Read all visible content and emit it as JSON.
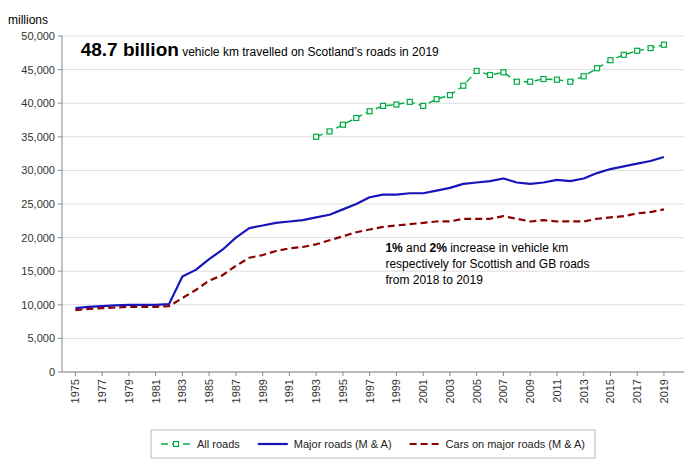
{
  "chart_data": {
    "type": "line",
    "y_label": "millions",
    "annotation": [
      "48.7 billion",
      " vehicle km travelled on Scotland’s roads in 2019"
    ],
    "subtitle": [
      [
        "1%",
        " and ",
        "2%",
        " increase in vehicle km"
      ],
      [
        "respectively for Scottish and GB roads"
      ],
      [
        "from 2018 to 2019"
      ]
    ],
    "x": [
      1975,
      1976,
      1977,
      1978,
      1979,
      1980,
      1981,
      1982,
      1983,
      1984,
      1985,
      1986,
      1987,
      1988,
      1989,
      1990,
      1991,
      1992,
      1993,
      1994,
      1995,
      1996,
      1997,
      1998,
      1999,
      2000,
      2001,
      2002,
      2003,
      2004,
      2005,
      2006,
      2007,
      2008,
      2009,
      2010,
      2011,
      2012,
      2013,
      2014,
      2015,
      2016,
      2017,
      2018,
      2019
    ],
    "series": [
      {
        "name": "All roads",
        "color": "#00AA44",
        "line_style": "dashed",
        "marker": "square",
        "values": [
          null,
          null,
          null,
          null,
          null,
          null,
          null,
          null,
          null,
          null,
          null,
          null,
          null,
          null,
          null,
          null,
          null,
          null,
          35000,
          35800,
          36800,
          37800,
          38800,
          39600,
          39800,
          40200,
          39600,
          40600,
          41200,
          42600,
          44800,
          44200,
          44600,
          43200,
          43200,
          43600,
          43500,
          43200,
          44000,
          45200,
          46400,
          47200,
          47800,
          48200,
          48700
        ]
      },
      {
        "name": "Major roads (M & A)",
        "color": "#1515BB",
        "line_style": "solid",
        "values": [
          9500,
          9700,
          9800,
          9900,
          10000,
          10000,
          10000,
          10100,
          14200,
          15200,
          16800,
          18200,
          20000,
          21400,
          21800,
          22200,
          22400,
          22600,
          23000,
          23400,
          24200,
          25000,
          26000,
          26400,
          26400,
          26600,
          26600,
          27000,
          27400,
          28000,
          28200,
          28400,
          28800,
          28200,
          28000,
          28200,
          28600,
          28400,
          28800,
          29600,
          30200,
          30600,
          31000,
          31400,
          32000
        ]
      },
      {
        "name": "Cars on major roads (M & A)",
        "color": "#8B0000",
        "line_style": "dashed",
        "values": [
          9200,
          9400,
          9500,
          9600,
          9700,
          9700,
          9700,
          9800,
          11000,
          12200,
          13600,
          14400,
          15800,
          17000,
          17400,
          18000,
          18400,
          18600,
          19000,
          19600,
          20200,
          20800,
          21200,
          21600,
          21800,
          22000,
          22200,
          22400,
          22400,
          22800,
          22800,
          22800,
          23200,
          22800,
          22400,
          22600,
          22400,
          22400,
          22400,
          22800,
          23000,
          23200,
          23600,
          23800,
          24200
        ]
      }
    ],
    "xlim": [
      1974,
      2020.5
    ],
    "xticks": [
      1975,
      1977,
      1979,
      1981,
      1983,
      1985,
      1987,
      1989,
      1991,
      1993,
      1995,
      1997,
      1999,
      2001,
      2003,
      2005,
      2007,
      2009,
      2011,
      2013,
      2015,
      2017,
      2019
    ],
    "ylim": [
      0,
      50000
    ],
    "yticks": [
      0,
      {
        "value": 5000,
        "label": "5,000"
      },
      {
        "value": 10000,
        "label": "10,000"
      },
      {
        "value": 15000,
        "label": "15,000"
      },
      {
        "value": 20000,
        "label": "20,000"
      },
      {
        "value": 25000,
        "label": "25,000"
      },
      {
        "value": 30000,
        "label": "30,000"
      },
      {
        "value": 35000,
        "label": "35,000"
      },
      {
        "value": 40000,
        "label": "40,000"
      },
      {
        "value": 45000,
        "label": "45,000"
      },
      {
        "value": 50000,
        "label": "50,000"
      }
    ],
    "grid": true,
    "legend": "bottom"
  }
}
